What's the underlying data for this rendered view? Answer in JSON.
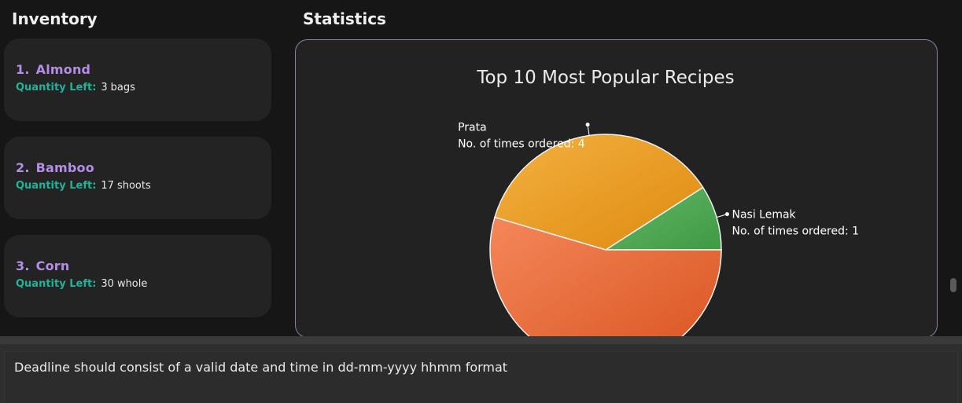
{
  "inventory": {
    "title": "Inventory",
    "items": [
      {
        "index": "1.",
        "name": "Almond",
        "qty_label": "Quantity Left:",
        "qty": "3",
        "unit": "bags"
      },
      {
        "index": "2.",
        "name": "Bamboo",
        "qty_label": "Quantity Left:",
        "qty": "17",
        "unit": "shoots"
      },
      {
        "index": "3.",
        "name": "Corn",
        "qty_label": "Quantity Left:",
        "qty": "30",
        "unit": "whole"
      }
    ]
  },
  "statistics": {
    "title": "Statistics"
  },
  "chart_data": {
    "type": "pie",
    "title": "Top 10 Most Popular Recipes",
    "slices": [
      {
        "name": "Nasi Lemak",
        "label_prefix": "No. of times ordered:",
        "value": 1,
        "color": "#4caf50"
      },
      {
        "name": "Prata",
        "label_prefix": "No. of times ordered:",
        "value": 4,
        "color": "#f0a020"
      },
      {
        "name": "",
        "label_prefix": "",
        "value": 6,
        "color": "#e86a3a"
      }
    ]
  },
  "result": {
    "message": "Deadline should consist of a valid date and time in dd-mm-yyyy hhmm format"
  },
  "colors": {
    "accent_purple": "#b48ee6",
    "accent_teal": "#1fb39a"
  }
}
